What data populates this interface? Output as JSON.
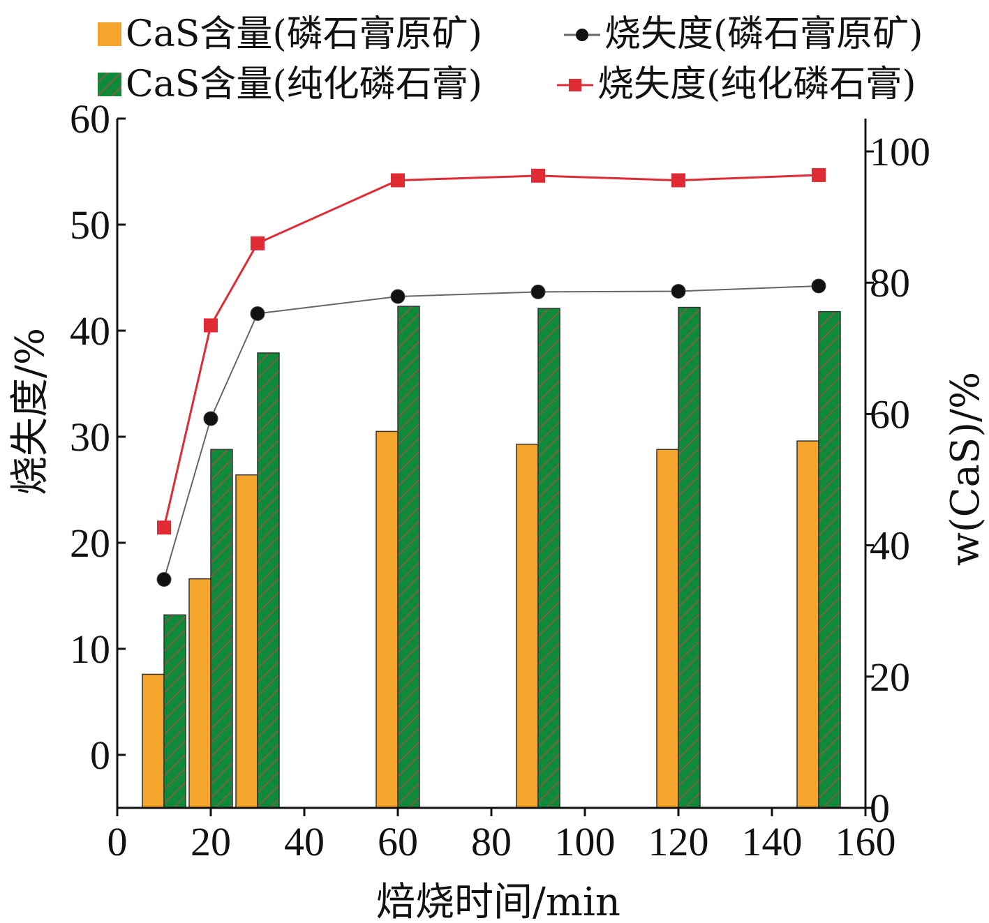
{
  "chart_data": {
    "type": "bar",
    "x_label": "焙烧时间/min",
    "y_left_label": "烧失度/%",
    "y_right_label": "w(CaS)/%",
    "x_range": [
      0,
      160
    ],
    "x_ticks": [
      0,
      20,
      40,
      60,
      80,
      100,
      120,
      140,
      160
    ],
    "y_left_range": [
      -5,
      60
    ],
    "y_left_ticks": [
      0,
      10,
      20,
      30,
      40,
      50,
      60
    ],
    "y_right_range": [
      0,
      105
    ],
    "y_right_ticks": [
      0,
      20,
      40,
      60,
      80,
      100
    ],
    "x": [
      10,
      20,
      30,
      60,
      90,
      120,
      150
    ],
    "bars": [
      {
        "name": "CaS含量(磷石膏原矿)",
        "axis": "left",
        "color": "#f5a52b",
        "pattern": "solid",
        "values": [
          7.6,
          16.6,
          26.4,
          30.5,
          29.3,
          28.8,
          29.6
        ]
      },
      {
        "name": "CaS含量(纯化磷石膏)",
        "axis": "left",
        "color": "#0f8a3a",
        "pattern": "hatch",
        "values": [
          13.2,
          28.8,
          37.9,
          42.3,
          42.1,
          42.2,
          41.8
        ]
      }
    ],
    "lines": [
      {
        "name": "烧失度(磷石膏原矿)",
        "axis": "right",
        "color": "#111111",
        "line_color": "#666666",
        "marker": "circle",
        "values": [
          34.8,
          59.3,
          75.3,
          77.9,
          78.6,
          78.7,
          79.5
        ]
      },
      {
        "name": "烧失度(纯化磷石膏)",
        "axis": "right",
        "color": "#e02b35",
        "line_color": "#e02b35",
        "marker": "square",
        "values": [
          42.7,
          73.5,
          86.0,
          95.6,
          96.3,
          95.6,
          96.4
        ]
      }
    ],
    "legend_position": "top"
  }
}
